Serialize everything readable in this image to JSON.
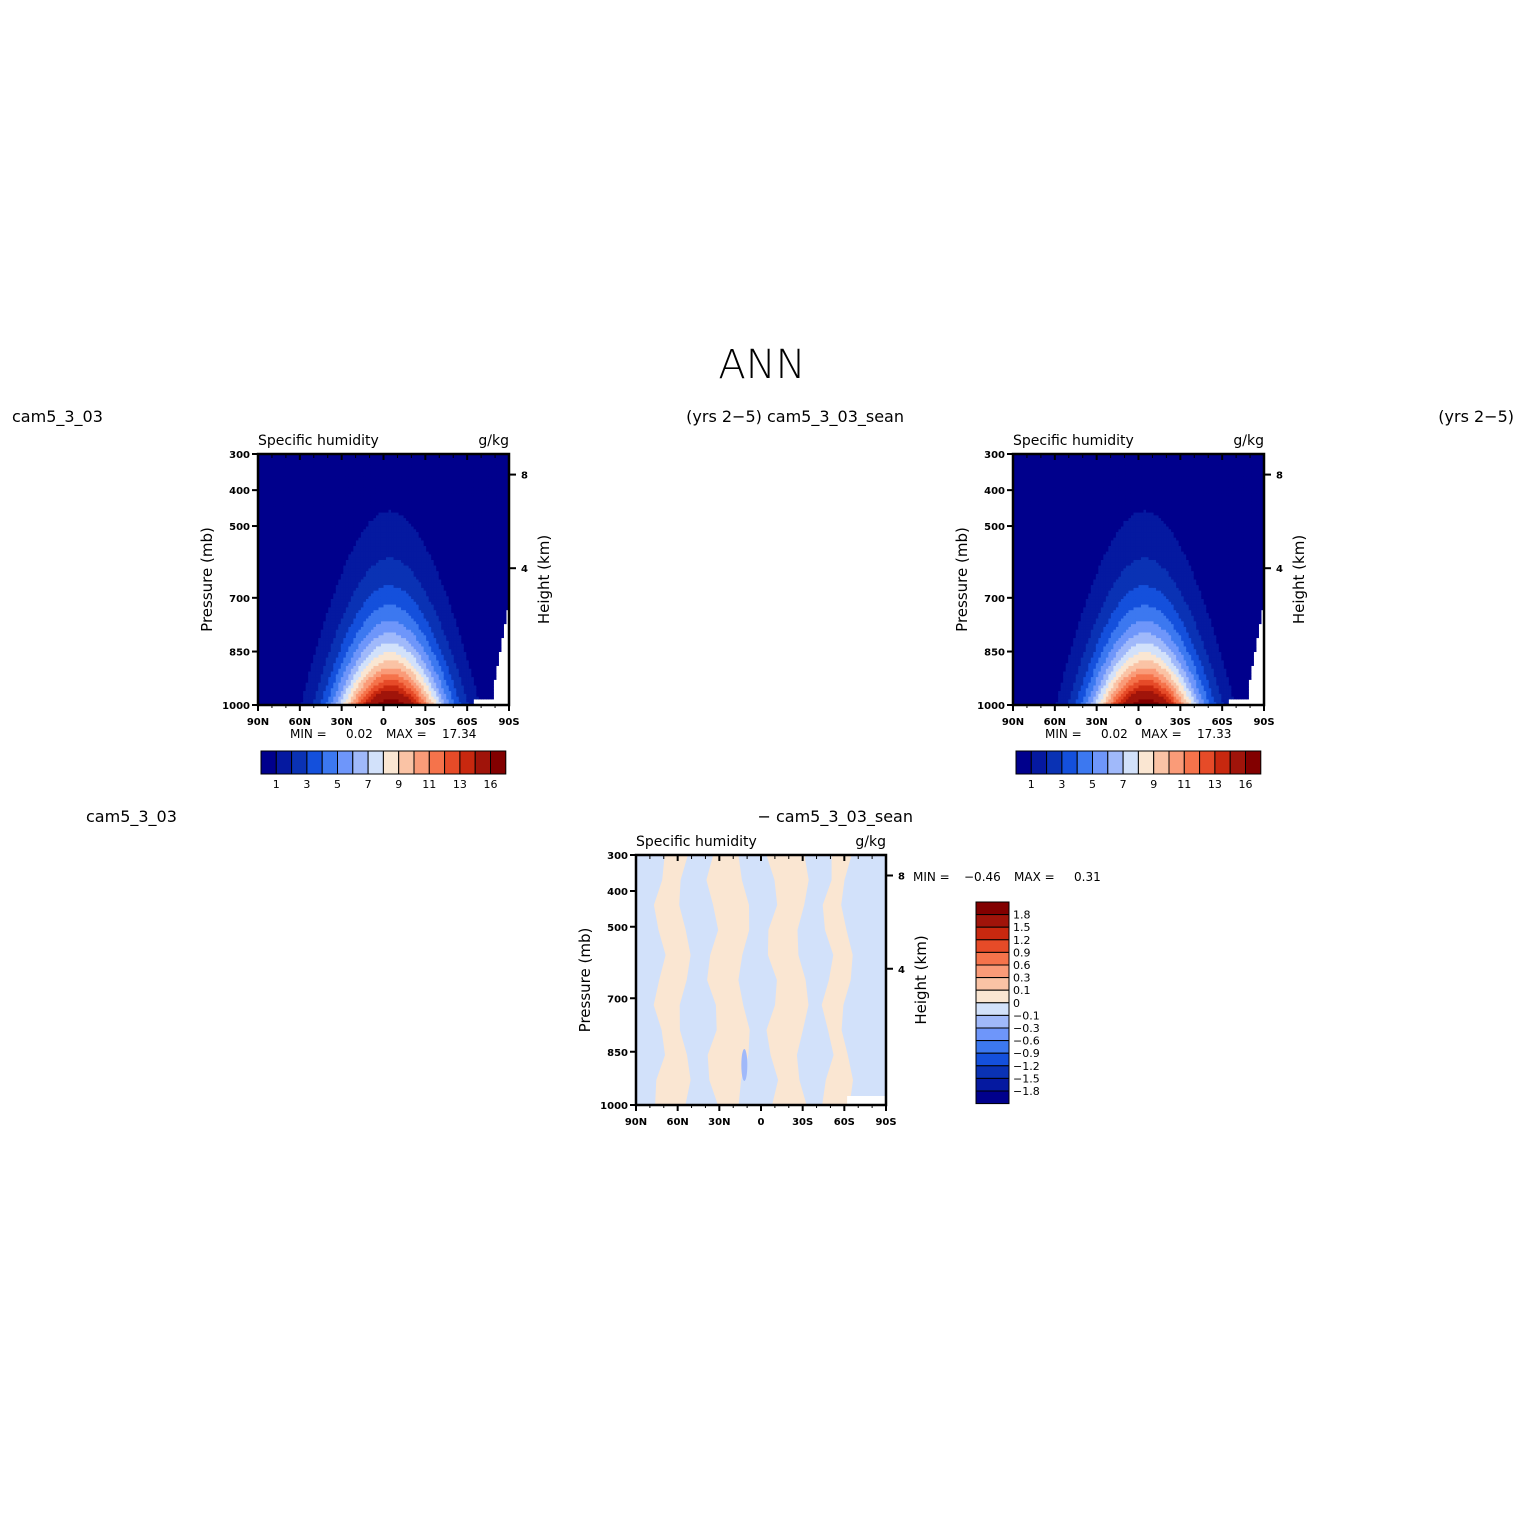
{
  "title": "ANN",
  "headers": {
    "top_left_case": "cam5_3_03",
    "top_mid_years_case": "(yrs 2−5) cam5_3_03_sean",
    "top_right_years": "(yrs 2−5)",
    "diff_left_case": "cam5_3_03",
    "diff_right_case": "− cam5_3_03_sean"
  },
  "colors": {
    "humidity_levels": [
      "#00008c",
      "#0519a0",
      "#0a32b4",
      "#1450dc",
      "#3c78f0",
      "#6e96fa",
      "#a0b9fa",
      "#d2e1fa",
      "#fae6d2",
      "#fac3a5",
      "#fa9b78",
      "#f5734b",
      "#e64b28",
      "#c8280f",
      "#a0140a",
      "#820000"
    ],
    "diff_levels": [
      "#00008c",
      "#0519a0",
      "#0a32b4",
      "#1450dc",
      "#3c78f0",
      "#6e96fa",
      "#a0b9fa",
      "#d2e1fa",
      "#fae6d2",
      "#fac3a5",
      "#fa9b78",
      "#f5734b",
      "#e64b28",
      "#c8280f",
      "#a0140a",
      "#820000"
    ]
  },
  "chart_data": [
    {
      "type": "heatmap",
      "subtitle_left": "Specific humidity",
      "subtitle_right": "g/kg",
      "ylabel": "Pressure (mb)",
      "ylabel_right": "Height (km)",
      "x_ticks": [
        "90N",
        "60N",
        "30N",
        "0",
        "30S",
        "60S",
        "90S"
      ],
      "y_ticks": [
        "300",
        "400",
        "500",
        "700",
        "850",
        "1000"
      ],
      "y_right_ticks": [
        "8",
        "4"
      ],
      "min_label": "MIN =",
      "min_value": "0.02",
      "max_label": "MAX =",
      "max_value": "17.34",
      "colorbar_labels": [
        "1",
        "3",
        "5",
        "7",
        "9",
        "11",
        "13",
        "16"
      ],
      "x_range": [
        -90,
        90
      ],
      "y_range": [
        300,
        1000
      ],
      "peak_value": 17.34,
      "peak_latitude": 5,
      "peak_pressure": 1000
    },
    {
      "type": "heatmap",
      "subtitle_left": "Specific humidity",
      "subtitle_right": "g/kg",
      "ylabel": "Pressure (mb)",
      "ylabel_right": "Height (km)",
      "x_ticks": [
        "90N",
        "60N",
        "30N",
        "0",
        "30S",
        "60S",
        "90S"
      ],
      "y_ticks": [
        "300",
        "400",
        "500",
        "700",
        "850",
        "1000"
      ],
      "y_right_ticks": [
        "8",
        "4"
      ],
      "min_label": "MIN =",
      "min_value": "0.02",
      "max_label": "MAX =",
      "max_value": "17.33",
      "colorbar_labels": [
        "1",
        "3",
        "5",
        "7",
        "9",
        "11",
        "13",
        "16"
      ],
      "x_range": [
        -90,
        90
      ],
      "y_range": [
        300,
        1000
      ],
      "peak_value": 17.33,
      "peak_latitude": 5,
      "peak_pressure": 1000
    },
    {
      "type": "heatmap",
      "subtitle_left": "Specific humidity",
      "subtitle_right": "g/kg",
      "ylabel": "Pressure (mb)",
      "ylabel_right": "Height (km)",
      "x_ticks": [
        "90N",
        "60N",
        "30N",
        "0",
        "30S",
        "60S",
        "90S"
      ],
      "y_ticks": [
        "300",
        "400",
        "500",
        "700",
        "850",
        "1000"
      ],
      "y_right_ticks": [
        "8",
        "4"
      ],
      "min_label": "MIN =",
      "min_value": "−0.46",
      "max_label": "MAX =",
      "max_value": "0.31",
      "colorbar_labels": [
        "1.8",
        "1.5",
        "1.2",
        "0.9",
        "0.6",
        "0.3",
        "0.1",
        "0",
        "−0.1",
        "−0.3",
        "−0.6",
        "−0.9",
        "−1.2",
        "−1.5",
        "−1.8"
      ],
      "x_range": [
        -90,
        90
      ],
      "y_range": [
        300,
        1000
      ],
      "band_boundaries_lat": [
        -90,
        -73,
        -55,
        -35,
        -12,
        8,
        30,
        48,
        62,
        90
      ],
      "band_signs": [
        "neg",
        "pos",
        "neg",
        "pos",
        "neg",
        "pos",
        "neg",
        "pos",
        "neg"
      ]
    }
  ]
}
